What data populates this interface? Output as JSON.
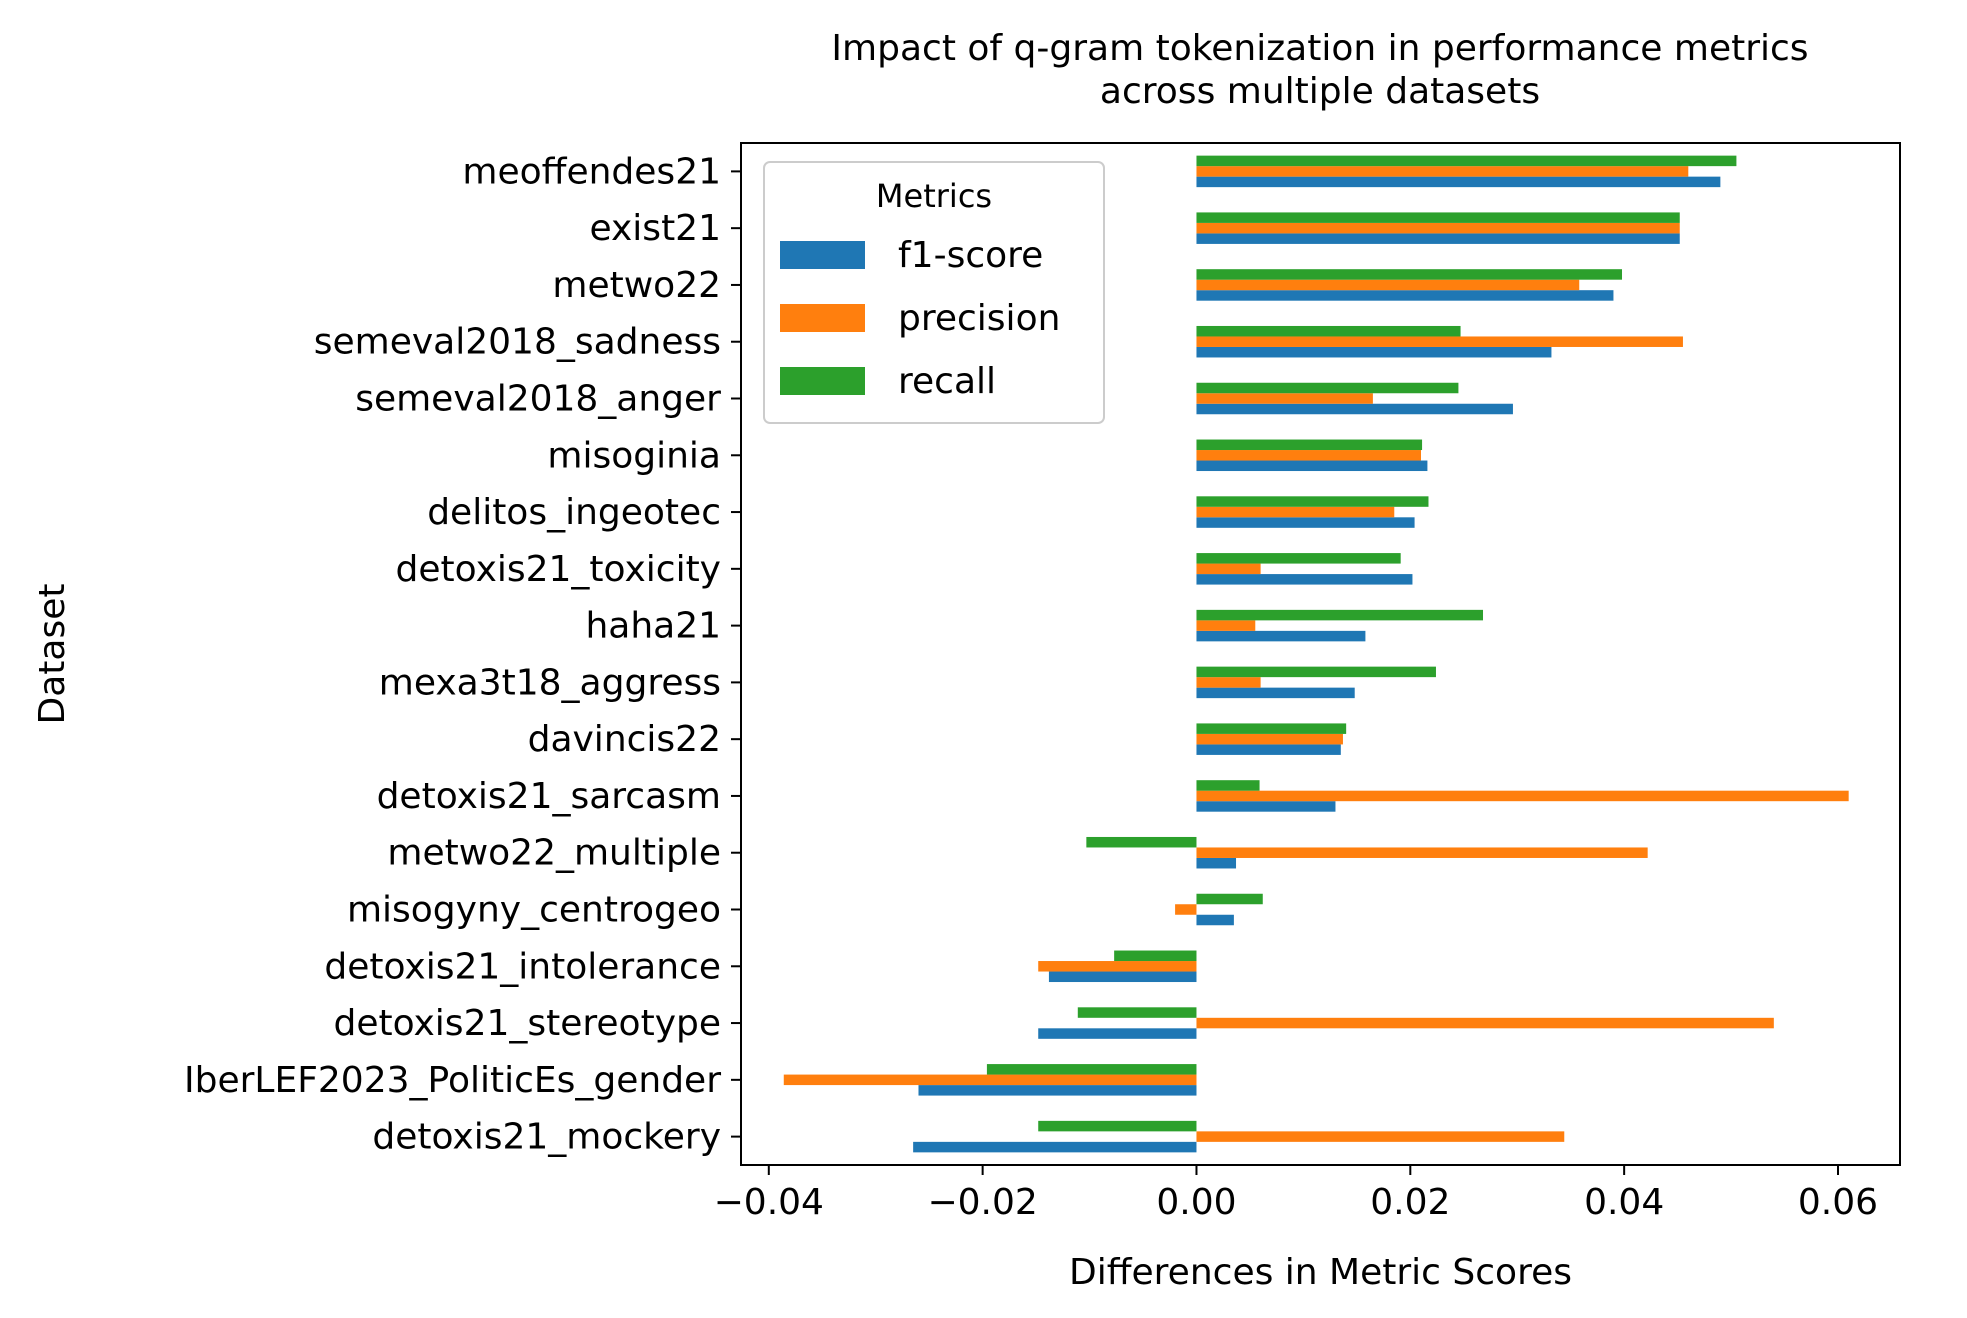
{
  "chart_data": {
    "type": "bar",
    "orientation": "horizontal",
    "title": "Impact of q-gram tokenization in performance metrics\nacross multiple datasets",
    "xlabel": "Differences in Metric Scores",
    "ylabel": "Dataset",
    "xlim": [
      -0.0426,
      0.0658
    ],
    "xticks": [
      -0.04,
      -0.02,
      0.0,
      0.02,
      0.04,
      0.06
    ],
    "xtick_labels": [
      "−0.04",
      "−0.02",
      "0.00",
      "0.02",
      "0.04",
      "0.06"
    ],
    "grid": false,
    "legend": {
      "title": "Metrics",
      "position": "top-left"
    },
    "categories": [
      "meoffendes21",
      "exist21",
      "metwo22",
      "semeval2018_sadness",
      "semeval2018_anger",
      "misoginia",
      "delitos_ingeotec",
      "detoxis21_toxicity",
      "haha21",
      "mexa3t18_aggress",
      "davincis22",
      "detoxis21_sarcasm",
      "metwo22_multiple",
      "misogyny_centrogeo",
      "detoxis21_intolerance",
      "detoxis21_stereotype",
      "IberLEF2023_PoliticEs_gender",
      "detoxis21_mockery"
    ],
    "series": [
      {
        "name": "f1-score",
        "color": "#1f77b4",
        "values": [
          0.049,
          0.0452,
          0.039,
          0.0332,
          0.0296,
          0.0216,
          0.0204,
          0.0202,
          0.0158,
          0.0148,
          0.0135,
          0.013,
          0.0037,
          0.0035,
          -0.0138,
          -0.0148,
          -0.026,
          -0.0265
        ]
      },
      {
        "name": "precision",
        "color": "#ff7f0e",
        "values": [
          0.046,
          0.0452,
          0.0358,
          0.0455,
          0.0165,
          0.021,
          0.0185,
          0.006,
          0.0055,
          0.006,
          0.0137,
          0.061,
          0.0422,
          -0.002,
          -0.0148,
          0.054,
          -0.0386,
          0.0344
        ]
      },
      {
        "name": "recall",
        "color": "#2ca02c",
        "values": [
          0.0505,
          0.0452,
          0.0398,
          0.0247,
          0.0245,
          0.0211,
          0.0217,
          0.0191,
          0.0268,
          0.0224,
          0.014,
          0.0059,
          -0.0103,
          0.0062,
          -0.0077,
          -0.0111,
          -0.0196,
          -0.0148
        ]
      }
    ]
  }
}
